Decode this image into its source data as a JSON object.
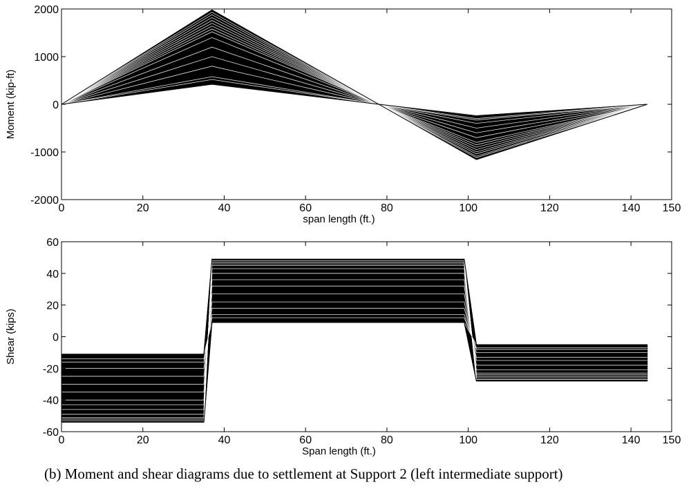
{
  "caption": "(b)  Moment and shear diagrams due to settlement at Support 2 (left intermediate support)",
  "chart_data": [
    {
      "type": "line",
      "title": "",
      "xlabel": "span length (ft.)",
      "ylabel": "Moment (kip-ft)",
      "xlim": [
        0,
        150
      ],
      "ylim": [
        -2000,
        2000
      ],
      "xticks": [
        "0",
        "20",
        "40",
        "60",
        "80",
        "100",
        "120",
        "140",
        "150"
      ],
      "yticks": [
        "2000",
        "1000",
        "0",
        "-1000",
        "-2000"
      ],
      "grid": false,
      "legend": "none",
      "line_color": "#000000",
      "x": [
        0,
        37,
        78,
        102,
        144
      ],
      "envelope_upper": [
        0,
        1980,
        0,
        -240,
        0
      ],
      "envelope_lower": [
        0,
        420,
        0,
        -1160,
        0
      ],
      "series": [
        {
          "values": [
            0,
            1980,
            0,
            -1160,
            0
          ]
        },
        {
          "values": [
            0,
            1930,
            0,
            -1120,
            0
          ]
        },
        {
          "values": [
            0,
            1880,
            0,
            -1090,
            0
          ]
        },
        {
          "values": [
            0,
            1820,
            0,
            -1040,
            0
          ]
        },
        {
          "values": [
            0,
            1760,
            0,
            -1000,
            0
          ]
        },
        {
          "values": [
            0,
            1700,
            0,
            -950,
            0
          ]
        },
        {
          "values": [
            0,
            1640,
            0,
            -900,
            0
          ]
        },
        {
          "values": [
            0,
            1580,
            0,
            -850,
            0
          ]
        },
        {
          "values": [
            0,
            1520,
            0,
            -800,
            0
          ]
        },
        {
          "values": [
            0,
            1400,
            0,
            -700,
            0
          ]
        },
        {
          "values": [
            0,
            1200,
            0,
            -600,
            0
          ]
        },
        {
          "values": [
            0,
            1000,
            0,
            -500,
            0
          ]
        },
        {
          "values": [
            0,
            800,
            0,
            -400,
            0
          ]
        },
        {
          "values": [
            0,
            580,
            0,
            -330,
            0
          ]
        },
        {
          "values": [
            0,
            520,
            0,
            -300,
            0
          ]
        },
        {
          "values": [
            0,
            420,
            0,
            -240,
            0
          ]
        }
      ]
    },
    {
      "type": "line",
      "title": "",
      "xlabel": "Span length (ft.)",
      "ylabel": "Shear (kips)",
      "xlim": [
        0,
        150
      ],
      "ylim": [
        -60,
        60
      ],
      "xticks": [
        "0",
        "20",
        "40",
        "60",
        "80",
        "100",
        "120",
        "140",
        "150"
      ],
      "yticks": [
        "60",
        "40",
        "20",
        "0",
        "-20",
        "-40",
        "-60"
      ],
      "grid": false,
      "legend": "none",
      "line_color": "#000000",
      "x": [
        0,
        35,
        37,
        99,
        102,
        144
      ],
      "envelope_upper": [
        -11,
        -11,
        49,
        49,
        -5,
        -5
      ],
      "envelope_lower": [
        -54,
        -54,
        9,
        9,
        -28,
        -28
      ],
      "series": [
        {
          "values": [
            -11,
            -11,
            9,
            9,
            -5,
            -5
          ]
        },
        {
          "values": [
            -14,
            -14,
            12,
            12,
            -7,
            -7
          ]
        },
        {
          "values": [
            -16,
            -16,
            14,
            14,
            -8,
            -8
          ]
        },
        {
          "values": [
            -20,
            -20,
            18,
            18,
            -10,
            -10
          ]
        },
        {
          "values": [
            -25,
            -25,
            22,
            22,
            -13,
            -13
          ]
        },
        {
          "values": [
            -30,
            -30,
            27,
            27,
            -15,
            -15
          ]
        },
        {
          "values": [
            -35,
            -35,
            32,
            32,
            -18,
            -18
          ]
        },
        {
          "values": [
            -40,
            -40,
            36,
            36,
            -21,
            -21
          ]
        },
        {
          "values": [
            -43,
            -43,
            40,
            40,
            -23,
            -23
          ]
        },
        {
          "values": [
            -46,
            -46,
            43,
            43,
            -24,
            -24
          ]
        },
        {
          "values": [
            -49,
            -49,
            45,
            45,
            -25,
            -25
          ]
        },
        {
          "values": [
            -51,
            -51,
            46,
            46,
            -26,
            -26
          ]
        },
        {
          "values": [
            -52,
            -52,
            47,
            47,
            -27,
            -27
          ]
        },
        {
          "values": [
            -53,
            -53,
            48,
            48,
            -27,
            -27
          ]
        },
        {
          "values": [
            -54,
            -54,
            49,
            49,
            -28,
            -28
          ]
        }
      ]
    }
  ]
}
